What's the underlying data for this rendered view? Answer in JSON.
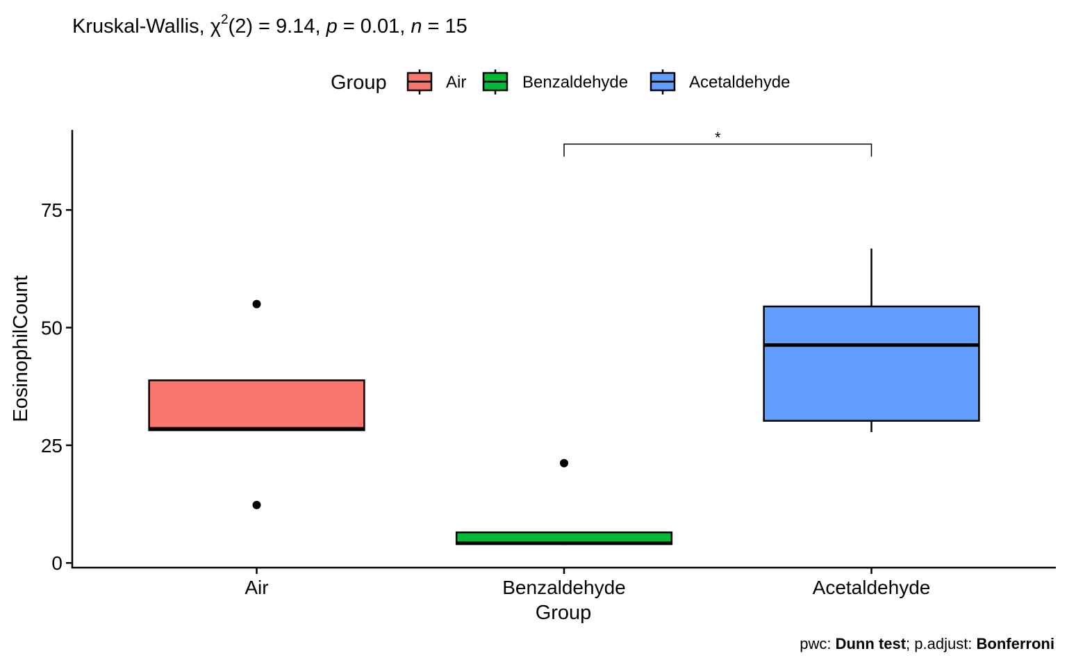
{
  "chart_data": {
    "type": "boxplot",
    "subtitle": {
      "prefix": "Kruskal-Wallis, ",
      "chi": "χ",
      "chi_sup": "2",
      "df_part": "(2) = 9.14, ",
      "p_symbol": "p",
      "p_part": " = 0.01, ",
      "n_symbol": "n",
      "n_part": " = 15"
    },
    "legend": {
      "title": "Group",
      "position": "top",
      "entries": [
        {
          "label": "Air",
          "color": "#F8766D"
        },
        {
          "label": "Benzaldehyde",
          "color": "#00BA38"
        },
        {
          "label": "Acetaldehyde",
          "color": "#619CFF"
        }
      ]
    },
    "xlabel": "Group",
    "ylabel": "EosinophilCount",
    "ylim": [
      -1,
      92
    ],
    "yticks": [
      0,
      25,
      50,
      75
    ],
    "ytick_labels": [
      "0",
      "25",
      "50",
      "75"
    ],
    "categories": [
      "Air",
      "Benzaldehyde",
      "Acetaldehyde"
    ],
    "boxes": [
      {
        "category": "Air",
        "color": "#F8766D",
        "whisker_low": 28.2,
        "q1": 28.2,
        "median": 28.5,
        "q3": 38.8,
        "whisker_high": 38.8,
        "outliers": [
          55,
          12.3
        ]
      },
      {
        "category": "Benzaldehyde",
        "color": "#00BA38",
        "whisker_low": 3.8,
        "q1": 4.0,
        "median": 4.2,
        "q3": 6.5,
        "whisker_high": 6.5,
        "outliers": [
          21.2
        ]
      },
      {
        "category": "Acetaldehyde",
        "color": "#619CFF",
        "whisker_low": 27.8,
        "q1": 30.2,
        "median": 46.3,
        "q3": 54.5,
        "whisker_high": 66.8,
        "outliers": []
      }
    ],
    "comparisons": [
      {
        "from": "Benzaldehyde",
        "to": "Acetaldehyde",
        "y": 89,
        "label": "*"
      }
    ],
    "caption": {
      "part1": "pwc: ",
      "part2": "Dunn test",
      "part3": "; p.adjust: ",
      "part4": "Bonferroni"
    },
    "grid": false
  }
}
